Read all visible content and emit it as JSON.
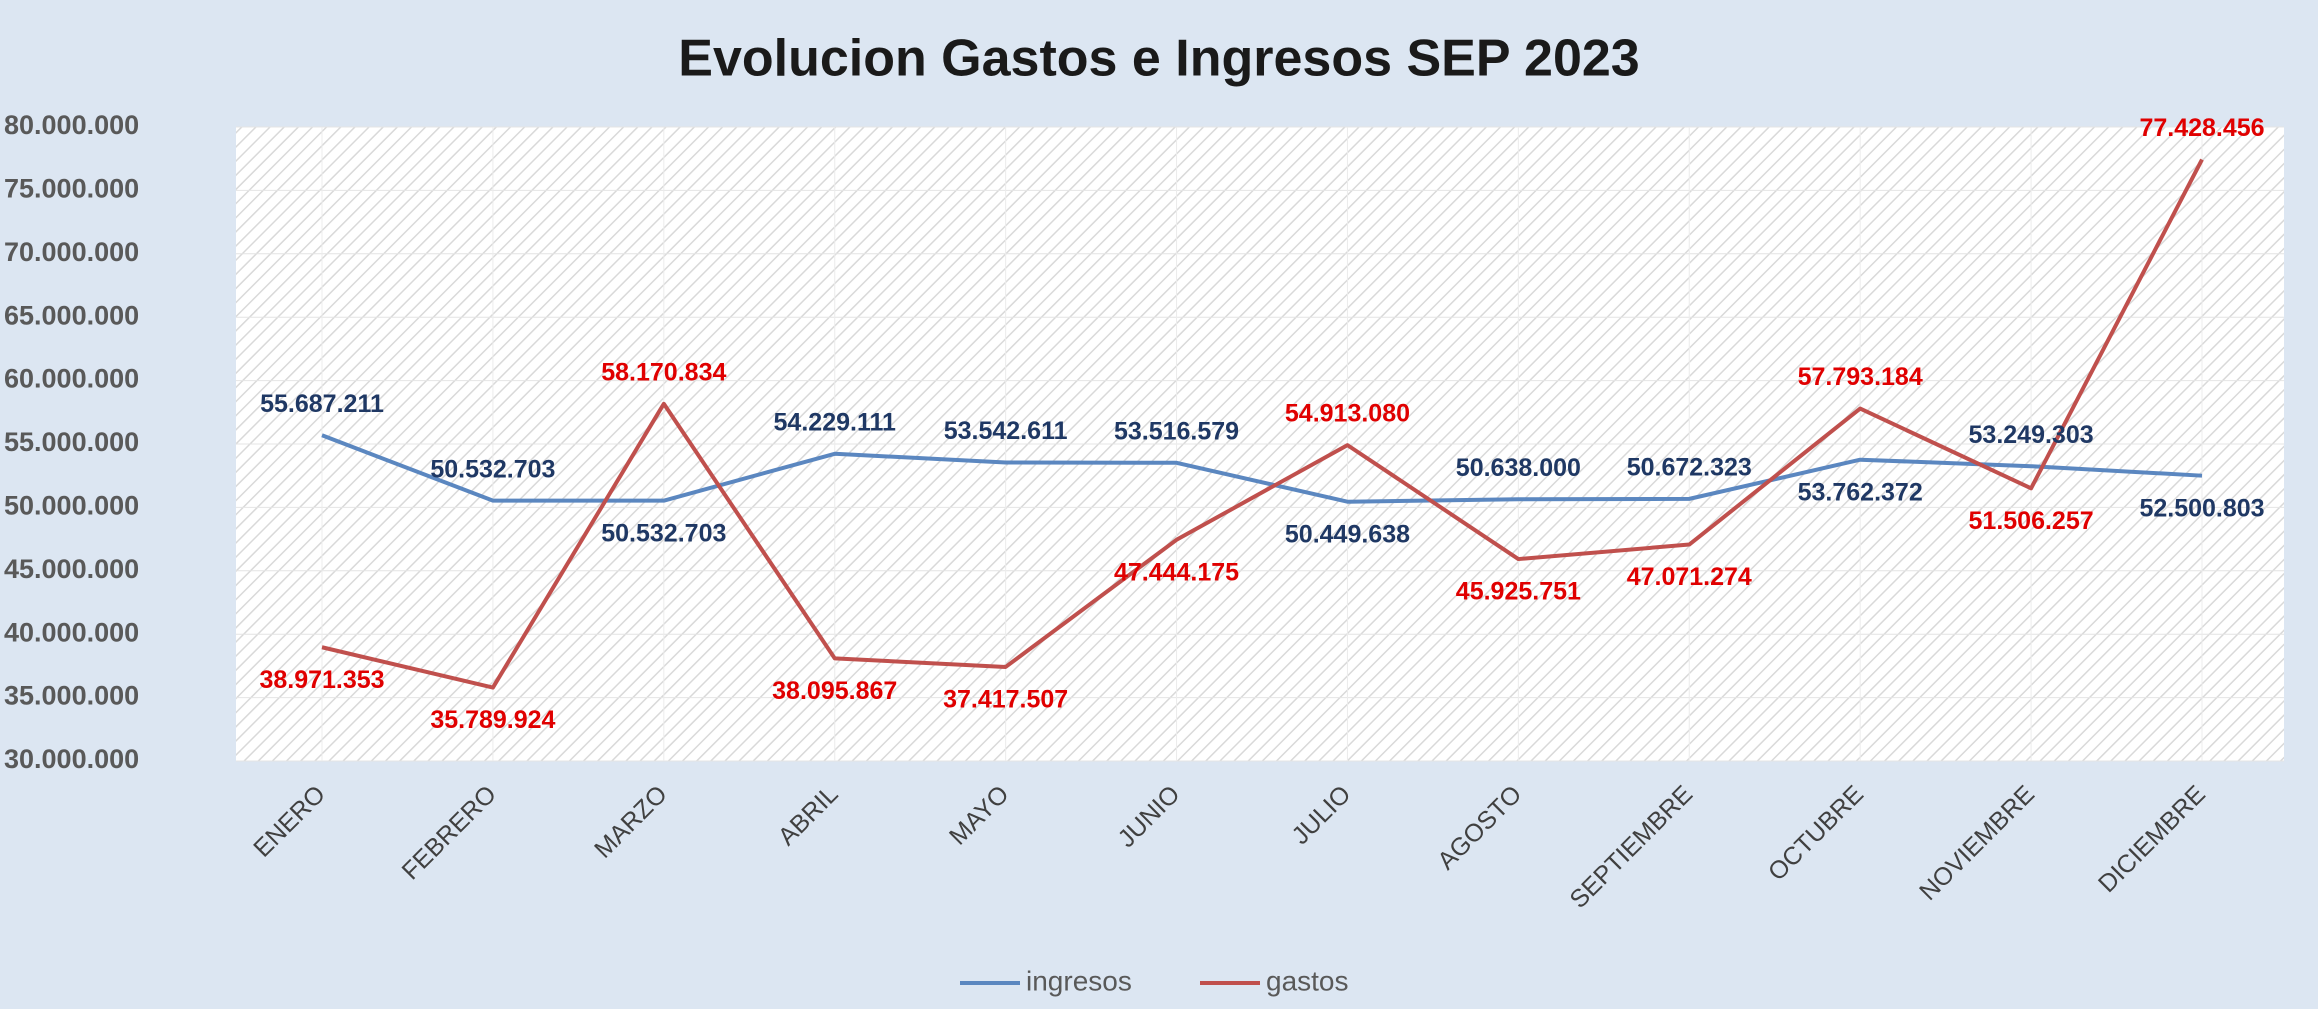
{
  "chart_data": {
    "type": "line",
    "title": "Evolucion Gastos e Ingresos SEP 2023",
    "categories": [
      "ENERO",
      "FEBRERO",
      "MARZO",
      "ABRIL",
      "MAYO",
      "JUNIO",
      "JULIO",
      "AGOSTO",
      "SEPTIEMBRE",
      "OCTUBRE",
      "NOVIEMBRE",
      "DICIEMBRE"
    ],
    "series": [
      {
        "name": "ingresos",
        "color": "#5b87c0",
        "label_color": "#1f3864",
        "values": [
          55687211,
          50532703,
          50532703,
          54229111,
          53542611,
          53516579,
          50449638,
          50638000,
          50672323,
          53762372,
          53249303,
          52500803
        ],
        "value_labels": [
          "55.687.211",
          "50.532.703",
          "50.532.703",
          "54.229.111",
          "53.542.611",
          "53.516.579",
          "50.449.638",
          "50.638.000",
          "50.672.323",
          "53.762.372",
          "53.249.303",
          "52.500.803"
        ]
      },
      {
        "name": "gastos",
        "color": "#c0504d",
        "label_color": "#e00000",
        "values": [
          38971353,
          35789924,
          58170834,
          38095867,
          37417507,
          47444175,
          54913080,
          45925751,
          47071274,
          57793184,
          51506257,
          77428456
        ],
        "value_labels": [
          "38.971.353",
          "35.789.924",
          "58.170.834",
          "38.095.867",
          "37.417.507",
          "47.444.175",
          "54.913.080",
          "45.925.751",
          "47.071.274",
          "57.793.184",
          "51.506.257",
          "77.428.456"
        ]
      }
    ],
    "ylim": [
      30000000,
      80000000
    ],
    "yticks": [
      {
        "value": 30000000,
        "label": "30.000.000"
      },
      {
        "value": 35000000,
        "label": "35.000.000"
      },
      {
        "value": 40000000,
        "label": "40.000.000"
      },
      {
        "value": 45000000,
        "label": "45.000.000"
      },
      {
        "value": 50000000,
        "label": "50.000.000"
      },
      {
        "value": 55000000,
        "label": "55.000.000"
      },
      {
        "value": 60000000,
        "label": "60.000.000"
      },
      {
        "value": 65000000,
        "label": "65.000.000"
      },
      {
        "value": 70000000,
        "label": "70.000.000"
      },
      {
        "value": 75000000,
        "label": "75.000.000"
      },
      {
        "value": 80000000,
        "label": "80.000.000"
      }
    ],
    "grid": true,
    "legend": "bottom"
  }
}
